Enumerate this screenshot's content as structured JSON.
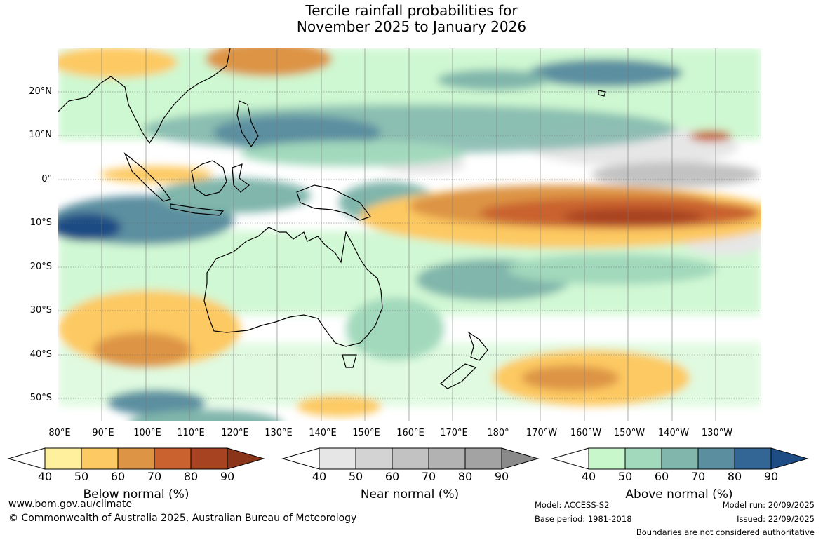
{
  "title": {
    "line1": "Tercile rainfall probabilities for",
    "line2": "November 2025 to January 2026"
  },
  "latitude_labels": [
    "20°N",
    "10°N",
    "0°",
    "10°S",
    "20°S",
    "30°S",
    "40°S",
    "50°S"
  ],
  "longitude_labels": [
    "80°E",
    "90°E",
    "100°E",
    "110°E",
    "120°E",
    "130°E",
    "140°E",
    "150°E",
    "160°E",
    "170°E",
    "180°",
    "170°W",
    "160°W",
    "150°W",
    "140°W",
    "130°W"
  ],
  "legends": [
    {
      "label": "Below normal (%)",
      "ticks": [
        "40",
        "50",
        "60",
        "70",
        "80",
        "90"
      ],
      "colors": [
        "#fff09e",
        "#fdc962",
        "#dd9445",
        "#c9622f",
        "#a84322",
        "#8a3519"
      ]
    },
    {
      "label": "Near normal (%)",
      "ticks": [
        "40",
        "50",
        "60",
        "70",
        "80",
        "90"
      ],
      "colors": [
        "#e6e6e6",
        "#d3d3d3",
        "#c2c2c2",
        "#b2b2b2",
        "#a3a3a3",
        "#8a8a8a"
      ]
    },
    {
      "label": "Above normal (%)",
      "ticks": [
        "40",
        "50",
        "60",
        "70",
        "80",
        "90"
      ],
      "colors": [
        "#c9f7cc",
        "#a2d9bc",
        "#80b6ab",
        "#5b8fa0",
        "#346695",
        "#1e4c84"
      ]
    }
  ],
  "footer": {
    "website": "www.bom.gov.au/climate",
    "copyright": "© Commonwealth of Australia 2025, Australian Bureau of Meteorology",
    "model": "Model: ACCESS-S2",
    "base_period": "Base period: 1981-2018",
    "model_run": "Model run: 20/09/2025",
    "issued": "Issued: 22/09/2025",
    "disclaimer": "Boundaries are not considered authoritative"
  }
}
